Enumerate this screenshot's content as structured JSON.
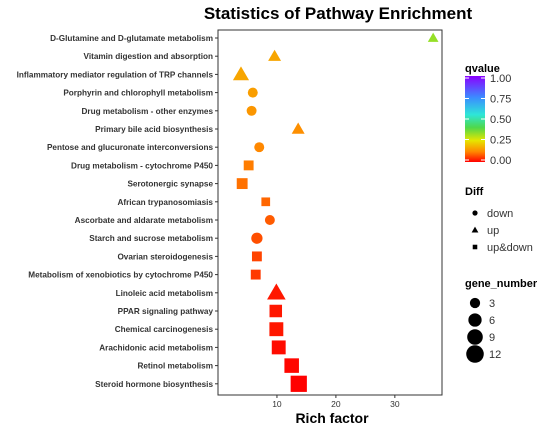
{
  "chart_data": {
    "type": "scatter",
    "title": "Statistics of Pathway Enrichment",
    "xlabel": "Rich factor",
    "ylabel": "",
    "xlim": [
      0,
      38
    ],
    "xticks": [
      10,
      20,
      30
    ],
    "grid": false,
    "legend_position": "right",
    "pathways": [
      {
        "name": "D-Glutamine and D-glutamate metabolism",
        "rich_factor": 36.5,
        "qvalue": 0.33,
        "diff": "up",
        "gene_number": 1
      },
      {
        "name": "Vitamin digestion and absorption",
        "rich_factor": 9.6,
        "qvalue": 0.16,
        "diff": "up",
        "gene_number": 2
      },
      {
        "name": "Inflammatory mediator regulation of TRP channels",
        "rich_factor": 3.9,
        "qvalue": 0.16,
        "diff": "up",
        "gene_number": 4
      },
      {
        "name": "Porphyrin and chlorophyll metabolism",
        "rich_factor": 5.9,
        "qvalue": 0.15,
        "diff": "down",
        "gene_number": 2
      },
      {
        "name": "Drug metabolism - other enzymes",
        "rich_factor": 5.7,
        "qvalue": 0.14,
        "diff": "down",
        "gene_number": 2
      },
      {
        "name": "Primary bile acid biosynthesis",
        "rich_factor": 13.6,
        "qvalue": 0.13,
        "diff": "up",
        "gene_number": 2
      },
      {
        "name": "Pentose and glucuronate interconversions",
        "rich_factor": 7.0,
        "qvalue": 0.12,
        "diff": "down",
        "gene_number": 2
      },
      {
        "name": "Drug metabolism - cytochrome P450",
        "rich_factor": 5.2,
        "qvalue": 0.11,
        "diff": "up&down",
        "gene_number": 3
      },
      {
        "name": "Serotonergic synapse",
        "rich_factor": 4.1,
        "qvalue": 0.1,
        "diff": "up&down",
        "gene_number": 4
      },
      {
        "name": "African trypanosomiasis",
        "rich_factor": 8.1,
        "qvalue": 0.09,
        "diff": "up&down",
        "gene_number": 2
      },
      {
        "name": "Ascorbate and aldarate metabolism",
        "rich_factor": 8.8,
        "qvalue": 0.08,
        "diff": "down",
        "gene_number": 2
      },
      {
        "name": "Starch and sucrose metabolism",
        "rich_factor": 6.6,
        "qvalue": 0.07,
        "diff": "down",
        "gene_number": 3
      },
      {
        "name": "Ovarian steroidogenesis",
        "rich_factor": 6.6,
        "qvalue": 0.06,
        "diff": "up&down",
        "gene_number": 3
      },
      {
        "name": "Metabolism of xenobiotics by cytochrome P450",
        "rich_factor": 6.4,
        "qvalue": 0.05,
        "diff": "up&down",
        "gene_number": 3
      },
      {
        "name": "Linoleic acid metabolism",
        "rich_factor": 9.9,
        "qvalue": 0.02,
        "diff": "up",
        "gene_number": 6
      },
      {
        "name": "PPAR signaling pathway",
        "rich_factor": 9.8,
        "qvalue": 0.02,
        "diff": "up&down",
        "gene_number": 6
      },
      {
        "name": "Chemical carcinogenesis",
        "rich_factor": 9.9,
        "qvalue": 0.02,
        "diff": "up&down",
        "gene_number": 8
      },
      {
        "name": "Arachidonic acid metabolism",
        "rich_factor": 10.3,
        "qvalue": 0.01,
        "diff": "up&down",
        "gene_number": 8
      },
      {
        "name": "Retinol metabolism",
        "rich_factor": 12.5,
        "qvalue": 0.005,
        "diff": "up&down",
        "gene_number": 9
      },
      {
        "name": "Steroid hormone biosynthesis",
        "rich_factor": 13.7,
        "qvalue": 0.001,
        "diff": "up&down",
        "gene_number": 12
      }
    ],
    "legend": {
      "qvalue": {
        "title": "qvalue",
        "ticks": [
          "1.00",
          "0.75",
          "0.50",
          "0.25",
          "0.00"
        ],
        "colors": [
          "#8b00ff",
          "#3b8cff",
          "#2ee6d8",
          "#4fd84a",
          "#e6e600",
          "#ff8800",
          "#ff0000"
        ]
      },
      "diff": {
        "title": "Diff",
        "items": [
          {
            "label": "down",
            "shape": "circle"
          },
          {
            "label": "up",
            "shape": "triangle"
          },
          {
            "label": "up&down",
            "shape": "square"
          }
        ]
      },
      "gene_number": {
        "title": "gene_number",
        "items": [
          {
            "label": "3",
            "value": 3
          },
          {
            "label": "6",
            "value": 6
          },
          {
            "label": "9",
            "value": 9
          },
          {
            "label": "12",
            "value": 12
          }
        ]
      }
    }
  }
}
